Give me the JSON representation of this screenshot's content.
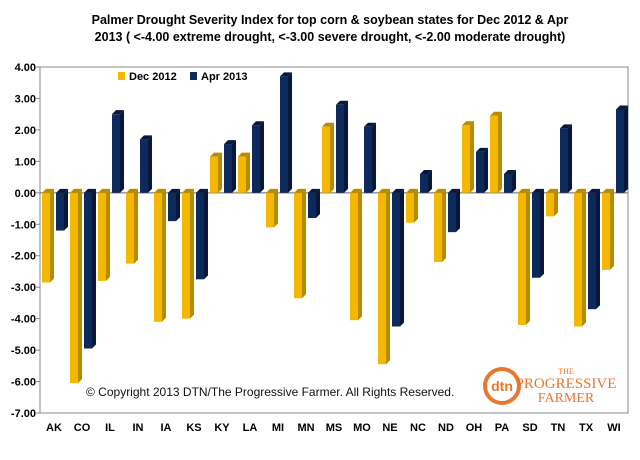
{
  "title_line1": "Palmer Drought Severity Index for top corn & soybean states for Dec 2012 & Apr",
  "title_line2": "2013 ( <-4.00 extreme drought, <-3.00 severe drought, <-2.00 moderate drought)",
  "copyright": "© Copyright 2013 DTN/The Progressive Farmer. All Rights Reserved.",
  "logo": {
    "dtn": "dtn",
    "the": "THE",
    "word1": "PROGRESSIVE",
    "word2": "FARMER"
  },
  "colors": {
    "dec": "#F5B800",
    "apr": "#0E2A5C",
    "dec_side": "#B88A00",
    "apr_side": "#07183A"
  },
  "chart_data": {
    "type": "bar",
    "title": "Palmer Drought Severity Index for top corn & soybean states for Dec 2012 & Apr 2013 ( <-4.00 extreme drought, <-3.00 severe drought, <-2.00 moderate drought)",
    "xlabel": "",
    "ylabel": "",
    "ylim": [
      -7,
      4
    ],
    "yticks": [
      "4.00",
      "3.00",
      "2.00",
      "1.00",
      "0.00",
      "-1.00",
      "-2.00",
      "-3.00",
      "-4.00",
      "-5.00",
      "-6.00",
      "-7.00"
    ],
    "grid": false,
    "legend_position": "top-left",
    "categories": [
      "AK",
      "CO",
      "IL",
      "IN",
      "IA",
      "KS",
      "KY",
      "LA",
      "MI",
      "MN",
      "MS",
      "MO",
      "NE",
      "NC",
      "ND",
      "OH",
      "PA",
      "SD",
      "TN",
      "TX",
      "WI"
    ],
    "series": [
      {
        "name": "Dec 2012",
        "values": [
          -2.85,
          -6.05,
          -2.8,
          -2.25,
          -4.1,
          -4.0,
          1.15,
          1.15,
          -1.1,
          -3.35,
          2.1,
          -4.05,
          -5.45,
          -0.95,
          -2.2,
          2.15,
          2.45,
          -4.2,
          -0.75,
          -4.25,
          -2.45
        ]
      },
      {
        "name": "Apr 2013",
        "values": [
          -1.2,
          -4.95,
          2.5,
          1.7,
          -0.9,
          -2.75,
          1.55,
          2.15,
          3.7,
          -0.8,
          2.8,
          2.1,
          -4.25,
          0.6,
          -1.25,
          1.3,
          0.6,
          -2.7,
          2.05,
          -3.7,
          2.65
        ]
      }
    ]
  }
}
